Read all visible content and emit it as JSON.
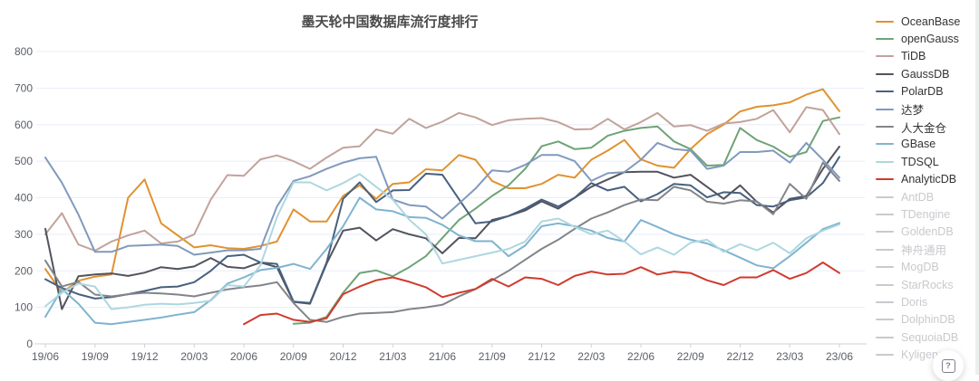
{
  "title": {
    "text": "墨天轮中国数据库流行度排行",
    "color": "#4a4a4a"
  },
  "help_button": {
    "glyph": "?",
    "icon": "boxed-question-mark"
  },
  "axis": {
    "y_tick_labels": [
      "0",
      "100",
      "200",
      "300",
      "400",
      "500",
      "600",
      "700",
      "800"
    ],
    "x_tick_labels": [
      "19/06",
      "19/09",
      "19/12",
      "20/03",
      "20/06",
      "20/09",
      "20/12",
      "21/03",
      "21/06",
      "21/09",
      "21/12",
      "22/03",
      "22/06",
      "22/09",
      "22/12",
      "23/03",
      "23/06"
    ],
    "label_color": "#5a5e66",
    "grid_color": "#e8eef7",
    "axis_line_color": "#ccd2da"
  },
  "chart_data": {
    "type": "line",
    "title": "墨天轮中国数据库流行度排行",
    "xlabel": "",
    "ylabel": "",
    "ylim": [
      0,
      800
    ],
    "y_tick_step": 100,
    "grid": true,
    "legend_position": "right",
    "inactive_color": "#c9c9ce",
    "x": [
      "19/06",
      "19/07",
      "19/08",
      "19/09",
      "19/10",
      "19/11",
      "19/12",
      "20/01",
      "20/02",
      "20/03",
      "20/04",
      "20/05",
      "20/06",
      "20/07",
      "20/08",
      "20/09",
      "20/10",
      "20/11",
      "20/12",
      "21/01",
      "21/02",
      "21/03",
      "21/04",
      "21/05",
      "21/06",
      "21/07",
      "21/08",
      "21/09",
      "21/10",
      "21/11",
      "21/12",
      "22/01",
      "22/02",
      "22/03",
      "22/04",
      "22/05",
      "22/06",
      "22/07",
      "22/08",
      "22/09",
      "22/10",
      "22/11",
      "22/12",
      "23/01",
      "23/02",
      "23/03",
      "23/04",
      "23/05",
      "23/06"
    ],
    "x_tick_every": 3,
    "series": [
      {
        "name": "OceanBase",
        "color": "#e0922f",
        "active": true,
        "values": [
          205,
          140,
          173,
          184,
          190,
          400,
          450,
          330,
          297,
          264,
          270,
          262,
          260,
          268,
          280,
          368,
          335,
          335,
          405,
          434,
          397,
          438,
          442,
          478,
          475,
          517,
          504,
          446,
          426,
          426,
          438,
          463,
          455,
          504,
          529,
          558,
          505,
          488,
          482,
          533,
          574,
          600,
          636,
          649,
          653,
          661,
          682,
          697,
          637
        ]
      },
      {
        "name": "openGauss",
        "color": "#6fa376",
        "active": true,
        "values": [
          null,
          null,
          null,
          null,
          null,
          null,
          null,
          null,
          null,
          null,
          null,
          null,
          null,
          null,
          null,
          55,
          58,
          74,
          140,
          194,
          201,
          185,
          210,
          240,
          290,
          339,
          370,
          405,
          434,
          479,
          541,
          554,
          533,
          537,
          570,
          583,
          591,
          595,
          554,
          533,
          488,
          490,
          591,
          558,
          540,
          512,
          525,
          610,
          620
        ]
      },
      {
        "name": "TiDB",
        "color": "#c2a29a",
        "active": true,
        "values": [
          300,
          358,
          272,
          255,
          280,
          297,
          310,
          275,
          280,
          300,
          395,
          462,
          460,
          505,
          516,
          500,
          479,
          510,
          537,
          541,
          587,
          575,
          616,
          591,
          608,
          632,
          620,
          599,
          612,
          616,
          618,
          607,
          587,
          588,
          616,
          587,
          607,
          632,
          595,
          599,
          583,
          603,
          607,
          616,
          640,
          579,
          648,
          640,
          574
        ]
      },
      {
        "name": "GaussDB",
        "color": "#52535c",
        "active": true,
        "values": [
          315,
          95,
          185,
          190,
          193,
          186,
          195,
          210,
          205,
          212,
          235,
          211,
          207,
          223,
          210,
          115,
          110,
          220,
          310,
          318,
          283,
          314,
          300,
          289,
          248,
          290,
          289,
          339,
          350,
          365,
          390,
          370,
          400,
          430,
          450,
          470,
          471,
          471,
          455,
          463,
          430,
          397,
          434,
          389,
          360,
          397,
          405,
          479,
          540
        ]
      },
      {
        "name": "PolarDB",
        "color": "#47607e",
        "active": true,
        "values": [
          177,
          153,
          136,
          124,
          128,
          136,
          145,
          155,
          157,
          169,
          200,
          240,
          244,
          223,
          219,
          116,
          112,
          223,
          397,
          442,
          388,
          420,
          421,
          466,
          463,
          396,
          330,
          335,
          350,
          370,
          395,
          376,
          400,
          440,
          420,
          430,
          390,
          410,
          438,
          434,
          401,
          415,
          413,
          380,
          376,
          393,
          401,
          440,
          512
        ]
      },
      {
        "name": "达梦",
        "color": "#8199bd",
        "active": true,
        "values": [
          510,
          441,
          354,
          252,
          252,
          268,
          270,
          272,
          268,
          244,
          250,
          256,
          256,
          260,
          376,
          446,
          459,
          479,
          496,
          508,
          512,
          395,
          380,
          376,
          343,
          384,
          425,
          475,
          471,
          490,
          517,
          517,
          500,
          446,
          467,
          470,
          504,
          550,
          533,
          529,
          479,
          488,
          525,
          525,
          529,
          496,
          550,
          504,
          455
        ]
      },
      {
        "name": "人大金仓",
        "color": "#83848a",
        "active": true,
        "values": [
          228,
          157,
          170,
          135,
          130,
          136,
          140,
          138,
          135,
          130,
          140,
          149,
          155,
          160,
          169,
          112,
          66,
          60,
          74,
          83,
          85,
          87,
          95,
          100,
          107,
          130,
          150,
          174,
          200,
          230,
          260,
          285,
          315,
          343,
          360,
          380,
          395,
          393,
          430,
          420,
          389,
          384,
          393,
          390,
          355,
          438,
          397,
          496,
          446
        ]
      },
      {
        "name": "GBase",
        "color": "#7fb3d0",
        "active": true,
        "values": [
          74,
          150,
          110,
          58,
          54,
          60,
          66,
          72,
          80,
          87,
          120,
          165,
          182,
          202,
          208,
          219,
          205,
          260,
          322,
          400,
          368,
          363,
          347,
          345,
          326,
          297,
          281,
          281,
          240,
          269,
          322,
          330,
          322,
          310,
          290,
          280,
          339,
          320,
          300,
          285,
          275,
          256,
          236,
          215,
          207,
          240,
          277,
          314,
          331
        ]
      },
      {
        "name": "TDSQL",
        "color": "#aed7e0",
        "active": true,
        "values": [
          103,
          140,
          165,
          157,
          95,
          100,
          107,
          110,
          108,
          112,
          118,
          161,
          157,
          215,
          347,
          442,
          442,
          420,
          440,
          465,
          430,
          395,
          340,
          300,
          220,
          230,
          240,
          250,
          260,
          280,
          335,
          343,
          320,
          300,
          310,
          280,
          245,
          264,
          244,
          277,
          285,
          252,
          273,
          256,
          277,
          248,
          289,
          310,
          327
        ]
      },
      {
        "name": "AnalyticDB",
        "color": "#d03a2d",
        "active": true,
        "values": [
          null,
          null,
          null,
          null,
          null,
          null,
          null,
          null,
          null,
          null,
          null,
          null,
          54,
          79,
          83,
          66,
          60,
          70,
          136,
          157,
          174,
          182,
          170,
          155,
          128,
          140,
          150,
          178,
          157,
          182,
          178,
          161,
          186,
          198,
          190,
          192,
          210,
          190,
          198,
          194,
          174,
          161,
          182,
          182,
          202,
          178,
          194,
          223,
          194
        ]
      },
      {
        "name": "AntDB",
        "color": "#c9c9ce",
        "active": false,
        "values": []
      },
      {
        "name": "TDengine",
        "color": "#c9c9ce",
        "active": false,
        "values": []
      },
      {
        "name": "GoldenDB",
        "color": "#c9c9ce",
        "active": false,
        "values": []
      },
      {
        "name": "神舟通用",
        "color": "#c9c9ce",
        "active": false,
        "values": []
      },
      {
        "name": "MogDB",
        "color": "#c9c9ce",
        "active": false,
        "values": []
      },
      {
        "name": "StarRocks",
        "color": "#c9c9ce",
        "active": false,
        "values": []
      },
      {
        "name": "Doris",
        "color": "#c9c9ce",
        "active": false,
        "values": []
      },
      {
        "name": "DolphinDB",
        "color": "#c9c9ce",
        "active": false,
        "values": []
      },
      {
        "name": "SequoiaDB",
        "color": "#c9c9ce",
        "active": false,
        "values": []
      },
      {
        "name": "Kyligence",
        "color": "#c9c9ce",
        "active": false,
        "values": []
      }
    ]
  }
}
